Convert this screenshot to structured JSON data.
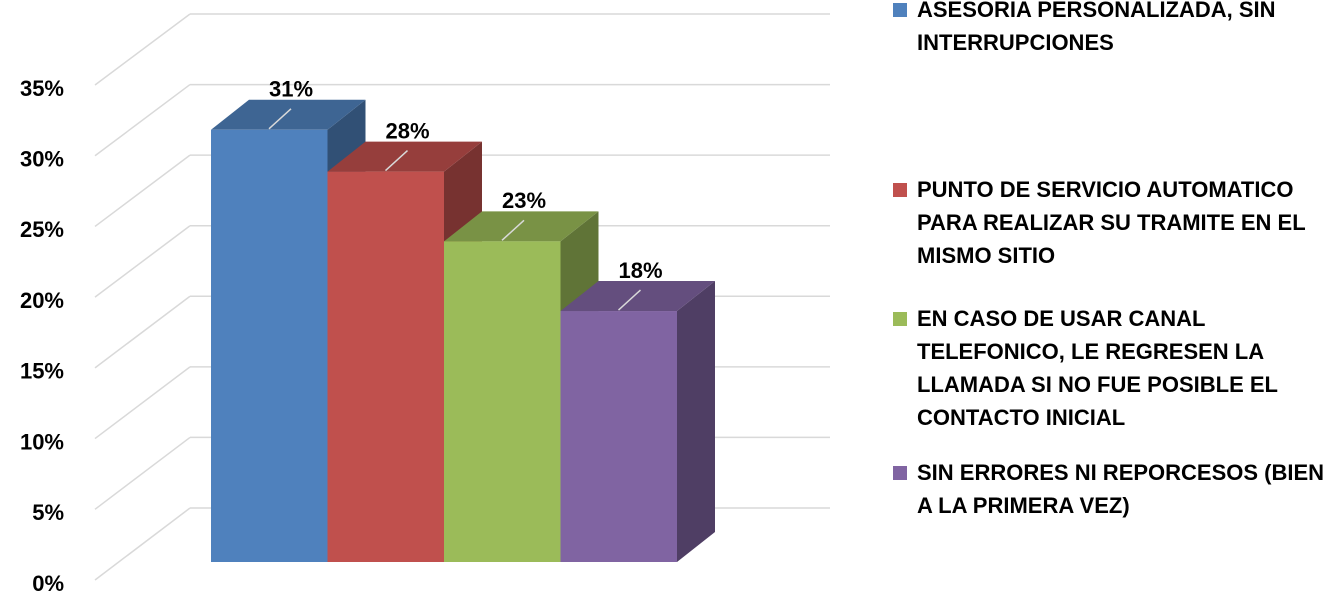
{
  "chart_data": {
    "type": "bar3d",
    "series": [
      {
        "name": "ASESORIA PERSONALIZADA, SIN INTERRUPCIONES",
        "color": "#4f81bd",
        "values": [
          31
        ],
        "value_labels": [
          "31%"
        ]
      },
      {
        "name": "PUNTO DE SERVICIO AUTOMATICO PARA REALIZAR SU TRAMITE EN EL MISMO SITIO",
        "color": "#c0504d",
        "values": [
          28
        ],
        "value_labels": [
          "28%"
        ]
      },
      {
        "name": "EN CASO DE USAR CANAL TELEFONICO, LE REGRESEN LA LLAMADA SI NO FUE POSIBLE EL CONTACTO INICIAL",
        "color": "#9bbb59",
        "values": [
          23
        ],
        "value_labels": [
          "23%"
        ]
      },
      {
        "name": "SIN ERRORES NI REPORCESOS (BIEN A LA PRIMERA VEZ)",
        "color": "#8064a2",
        "values": [
          18
        ],
        "value_labels": [
          "18%"
        ]
      }
    ],
    "ylim": [
      0,
      35
    ],
    "yticks": [
      {
        "value": 0,
        "label": "0%"
      },
      {
        "value": 5,
        "label": "5%"
      },
      {
        "value": 10,
        "label": "10%"
      },
      {
        "value": 15,
        "label": "15%"
      },
      {
        "value": 20,
        "label": "20%"
      },
      {
        "value": 25,
        "label": "25%"
      },
      {
        "value": 30,
        "label": "30%"
      },
      {
        "value": 35,
        "label": "35%"
      }
    ],
    "grid": true,
    "legend": "right"
  }
}
